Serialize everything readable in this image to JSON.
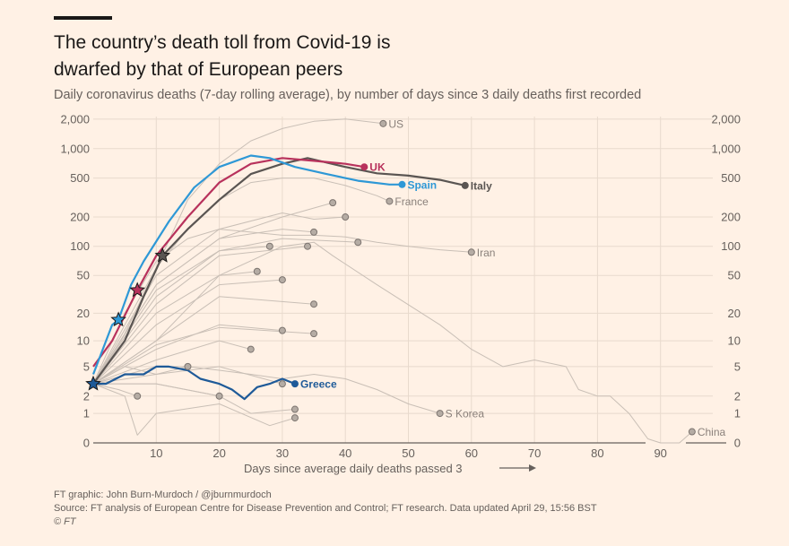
{
  "header": {
    "title_line1": "The country’s death toll from Covid-19 is",
    "title_line2": "dwarfed by that of European peers",
    "subtitle": "Daily coronavirus deaths (7-day rolling average), by number of days since 3 daily deaths first recorded"
  },
  "footer": {
    "credit": "FT graphic: John Burn-Murdoch / @jburnmurdoch",
    "source": "Source: FT analysis of European Centre for Disease Prevention and Control; FT research. Data updated April 29, 15:56 BST",
    "copyright": "© FT"
  },
  "chart_data": {
    "type": "line",
    "title": "The country’s death toll from Covid-19 is dwarfed by that of European peers",
    "subtitle": "Daily coronavirus deaths (7-day rolling average), by number of days since 3 daily deaths first recorded",
    "xlabel": "Days since average daily deaths passed 3",
    "xlim": [
      0,
      99
    ],
    "ylim": [
      0,
      2000
    ],
    "yscale": "log (value + 1)",
    "xticks": [
      "10",
      "20",
      "30",
      "40",
      "50",
      "60",
      "70",
      "80",
      "90"
    ],
    "yticks": [
      "0",
      "1",
      "2",
      "5",
      "10",
      "20",
      "50",
      "100",
      "200",
      "500",
      "1,000",
      "2,000"
    ],
    "grid": true,
    "colors": {
      "background": "#fff1e5",
      "context": "#c9bfb6",
      "uk": "#b8325c",
      "spain": "#2e98d6",
      "italy": "#5a5552",
      "greece": "#1e5a98"
    },
    "series": [
      {
        "name": "US",
        "style": "context",
        "points": [
          [
            0,
            3
          ],
          [
            5,
            12
          ],
          [
            10,
            60
          ],
          [
            15,
            300
          ],
          [
            20,
            700
          ],
          [
            25,
            1200
          ],
          [
            30,
            1600
          ],
          [
            35,
            1900
          ],
          [
            40,
            2000
          ],
          [
            43,
            1900
          ],
          [
            46,
            1800
          ]
        ]
      },
      {
        "name": "France",
        "style": "context",
        "points": [
          [
            0,
            3
          ],
          [
            5,
            15
          ],
          [
            10,
            60
          ],
          [
            15,
            150
          ],
          [
            20,
            300
          ],
          [
            25,
            450
          ],
          [
            30,
            500
          ],
          [
            35,
            500
          ],
          [
            40,
            420
          ],
          [
            45,
            330
          ],
          [
            47,
            290
          ]
        ]
      },
      {
        "name": "Iran",
        "style": "context",
        "points": [
          [
            0,
            3
          ],
          [
            5,
            20
          ],
          [
            10,
            70
          ],
          [
            15,
            120
          ],
          [
            20,
            150
          ],
          [
            25,
            140
          ],
          [
            30,
            130
          ],
          [
            35,
            130
          ],
          [
            40,
            125
          ],
          [
            45,
            110
          ],
          [
            50,
            100
          ],
          [
            55,
            92
          ],
          [
            60,
            87
          ]
        ]
      },
      {
        "name": "S Korea",
        "style": "context",
        "points": [
          [
            0,
            3
          ],
          [
            5,
            5
          ],
          [
            10,
            4
          ],
          [
            15,
            5
          ],
          [
            20,
            4.5
          ],
          [
            25,
            4
          ],
          [
            30,
            3.5
          ],
          [
            35,
            4
          ],
          [
            40,
            3.5
          ],
          [
            45,
            2.5
          ],
          [
            50,
            1.5
          ],
          [
            55,
            1
          ]
        ]
      },
      {
        "name": "China",
        "style": "context",
        "points": [
          [
            0,
            3
          ],
          [
            10,
            10
          ],
          [
            20,
            50
          ],
          [
            30,
            100
          ],
          [
            35,
            110
          ],
          [
            38,
            80
          ],
          [
            45,
            40
          ],
          [
            55,
            15
          ],
          [
            60,
            8
          ],
          [
            65,
            5
          ],
          [
            70,
            6
          ],
          [
            75,
            5
          ],
          [
            77,
            2.5
          ],
          [
            80,
            2
          ],
          [
            82,
            2
          ],
          [
            85,
            1
          ],
          [
            88,
            0.1
          ],
          [
            90,
            0
          ],
          [
            93,
            0
          ],
          [
            95,
            0.3
          ]
        ]
      },
      {
        "name": "",
        "style": "context",
        "points": [
          [
            0,
            3
          ],
          [
            10,
            40
          ],
          [
            20,
            120
          ],
          [
            30,
            200
          ],
          [
            38,
            280
          ]
        ]
      },
      {
        "name": "",
        "style": "context",
        "points": [
          [
            0,
            3
          ],
          [
            10,
            50
          ],
          [
            20,
            150
          ],
          [
            30,
            220
          ],
          [
            35,
            190
          ],
          [
            40,
            200
          ]
        ]
      },
      {
        "name": "",
        "style": "context",
        "points": [
          [
            0,
            3
          ],
          [
            10,
            40
          ],
          [
            20,
            120
          ],
          [
            30,
            150
          ],
          [
            35,
            140
          ]
        ]
      },
      {
        "name": "",
        "style": "context",
        "points": [
          [
            0,
            3
          ],
          [
            10,
            30
          ],
          [
            20,
            90
          ],
          [
            30,
            120
          ],
          [
            42,
            110
          ]
        ]
      },
      {
        "name": "",
        "style": "context",
        "points": [
          [
            0,
            3
          ],
          [
            10,
            35
          ],
          [
            20,
            90
          ],
          [
            28,
            100
          ]
        ]
      },
      {
        "name": "",
        "style": "context",
        "points": [
          [
            0,
            3
          ],
          [
            10,
            25
          ],
          [
            20,
            80
          ],
          [
            34,
            100
          ]
        ]
      },
      {
        "name": "",
        "style": "context",
        "points": [
          [
            0,
            3
          ],
          [
            10,
            20
          ],
          [
            20,
            50
          ],
          [
            26,
            55
          ]
        ]
      },
      {
        "name": "",
        "style": "context",
        "points": [
          [
            0,
            3
          ],
          [
            10,
            15
          ],
          [
            20,
            40
          ],
          [
            30,
            45
          ]
        ]
      },
      {
        "name": "",
        "style": "context",
        "points": [
          [
            0,
            3
          ],
          [
            10,
            10
          ],
          [
            20,
            30
          ],
          [
            35,
            25
          ]
        ]
      },
      {
        "name": "",
        "style": "context",
        "points": [
          [
            0,
            3
          ],
          [
            10,
            8
          ],
          [
            20,
            15
          ],
          [
            30,
            13
          ]
        ]
      },
      {
        "name": "",
        "style": "context",
        "points": [
          [
            0,
            3
          ],
          [
            10,
            9
          ],
          [
            20,
            14
          ],
          [
            35,
            12
          ]
        ]
      },
      {
        "name": "",
        "style": "context",
        "points": [
          [
            0,
            3
          ],
          [
            10,
            6
          ],
          [
            20,
            10
          ],
          [
            25,
            8
          ]
        ]
      },
      {
        "name": "",
        "style": "context",
        "points": [
          [
            0,
            3
          ],
          [
            10,
            4
          ],
          [
            20,
            5
          ],
          [
            30,
            3
          ]
        ]
      },
      {
        "name": "",
        "style": "context",
        "points": [
          [
            0,
            3
          ],
          [
            10,
            3
          ],
          [
            20,
            2
          ],
          [
            25,
            1
          ],
          [
            32,
            1.2
          ]
        ]
      },
      {
        "name": "",
        "style": "context",
        "points": [
          [
            0,
            3
          ],
          [
            5,
            2
          ],
          [
            7,
            0.2
          ],
          [
            10,
            1
          ],
          [
            20,
            1.5
          ],
          [
            28,
            0.5
          ],
          [
            32,
            0.8
          ]
        ]
      },
      {
        "name": "",
        "style": "context",
        "points": [
          [
            0,
            3
          ],
          [
            10,
            3
          ],
          [
            20,
            2
          ]
        ]
      },
      {
        "name": "",
        "style": "context",
        "points": [
          [
            0,
            3
          ],
          [
            10,
            5
          ],
          [
            15,
            5
          ]
        ]
      },
      {
        "name": "",
        "style": "context",
        "points": [
          [
            0,
            3
          ],
          [
            4,
            2.5
          ],
          [
            7,
            2
          ]
        ]
      },
      {
        "name": "Italy",
        "style": "italy",
        "lockdown_day": 11,
        "points": [
          [
            0,
            3
          ],
          [
            5,
            10
          ],
          [
            8,
            30
          ],
          [
            11,
            80
          ],
          [
            15,
            150
          ],
          [
            20,
            300
          ],
          [
            25,
            550
          ],
          [
            30,
            700
          ],
          [
            34,
            800
          ],
          [
            40,
            650
          ],
          [
            45,
            560
          ],
          [
            50,
            530
          ],
          [
            55,
            480
          ],
          [
            59,
            420
          ]
        ]
      },
      {
        "name": "UK",
        "style": "uk",
        "lockdown_day": 7,
        "points": [
          [
            0,
            5
          ],
          [
            3,
            10
          ],
          [
            7,
            35
          ],
          [
            10,
            80
          ],
          [
            15,
            200
          ],
          [
            20,
            450
          ],
          [
            25,
            700
          ],
          [
            30,
            800
          ],
          [
            35,
            750
          ],
          [
            40,
            700
          ],
          [
            43,
            650
          ]
        ]
      },
      {
        "name": "Spain",
        "style": "spain",
        "lockdown_day": 4,
        "points": [
          [
            0,
            4
          ],
          [
            3,
            15
          ],
          [
            4,
            17
          ],
          [
            6,
            40
          ],
          [
            8,
            70
          ],
          [
            12,
            180
          ],
          [
            16,
            400
          ],
          [
            20,
            650
          ],
          [
            25,
            850
          ],
          [
            28,
            800
          ],
          [
            32,
            650
          ],
          [
            37,
            550
          ],
          [
            42,
            470
          ],
          [
            47,
            430
          ],
          [
            49,
            430
          ]
        ]
      },
      {
        "name": "Greece",
        "style": "greece",
        "lockdown_day": 0,
        "points": [
          [
            0,
            3
          ],
          [
            2,
            3
          ],
          [
            5,
            4
          ],
          [
            8,
            4
          ],
          [
            10,
            5
          ],
          [
            12,
            5
          ],
          [
            15,
            4.5
          ],
          [
            17,
            3.5
          ],
          [
            20,
            3
          ],
          [
            22,
            2.5
          ],
          [
            24,
            1.8
          ],
          [
            26,
            2.7
          ],
          [
            28,
            3
          ],
          [
            30,
            3.5
          ],
          [
            32,
            3
          ]
        ]
      }
    ]
  }
}
